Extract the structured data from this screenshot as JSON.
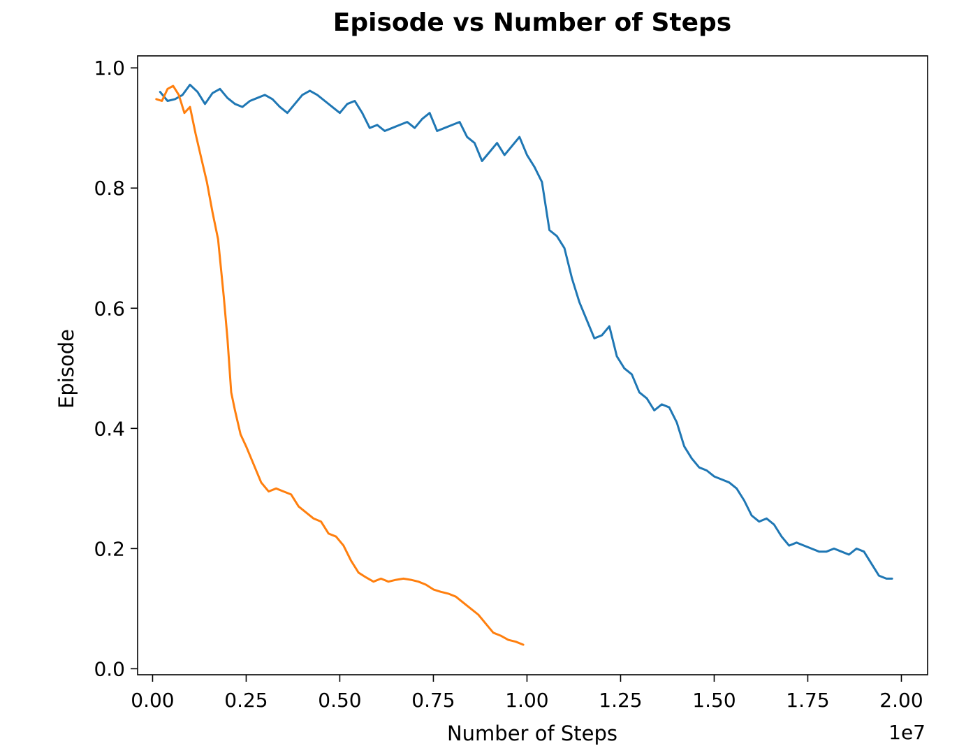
{
  "chart_data": {
    "type": "line",
    "title": "Episode vs Number of Steps",
    "xlabel": "Number of Steps",
    "ylabel": "Episode",
    "x_offset_label": "1e7",
    "xlim": [
      -0.04,
      2.07
    ],
    "ylim": [
      -0.01,
      1.02
    ],
    "x_ticks": [
      0.0,
      0.25,
      0.5,
      0.75,
      1.0,
      1.25,
      1.5,
      1.75,
      2.0
    ],
    "x_tick_labels": [
      "0.00",
      "0.25",
      "0.50",
      "0.75",
      "1.00",
      "1.25",
      "1.50",
      "1.75",
      "2.00"
    ],
    "y_ticks": [
      0.0,
      0.2,
      0.4,
      0.6,
      0.8,
      1.0
    ],
    "y_tick_labels": [
      "0.0",
      "0.2",
      "0.4",
      "0.6",
      "0.8",
      "1.0"
    ],
    "grid": false,
    "legend": "none",
    "series": [
      {
        "color": "#1f77b4",
        "x": [
          0.02,
          0.04,
          0.06,
          0.08,
          0.1,
          0.12,
          0.14,
          0.16,
          0.18,
          0.2,
          0.22,
          0.24,
          0.26,
          0.28,
          0.3,
          0.32,
          0.34,
          0.36,
          0.38,
          0.4,
          0.42,
          0.44,
          0.46,
          0.48,
          0.5,
          0.52,
          0.54,
          0.56,
          0.58,
          0.6,
          0.62,
          0.64,
          0.66,
          0.68,
          0.7,
          0.72,
          0.74,
          0.76,
          0.78,
          0.8,
          0.82,
          0.84,
          0.86,
          0.88,
          0.9,
          0.92,
          0.94,
          0.96,
          0.98,
          1.0,
          1.02,
          1.04,
          1.06,
          1.08,
          1.1,
          1.12,
          1.14,
          1.16,
          1.18,
          1.2,
          1.22,
          1.24,
          1.26,
          1.28,
          1.3,
          1.32,
          1.34,
          1.36,
          1.38,
          1.4,
          1.42,
          1.44,
          1.46,
          1.48,
          1.5,
          1.52,
          1.54,
          1.56,
          1.58,
          1.6,
          1.62,
          1.64,
          1.66,
          1.68,
          1.7,
          1.72,
          1.74,
          1.76,
          1.78,
          1.8,
          1.82,
          1.84,
          1.86,
          1.88,
          1.9,
          1.92,
          1.94,
          1.96,
          1.975
        ],
        "y": [
          0.96,
          0.945,
          0.948,
          0.955,
          0.972,
          0.96,
          0.94,
          0.958,
          0.965,
          0.95,
          0.94,
          0.935,
          0.945,
          0.95,
          0.955,
          0.948,
          0.935,
          0.925,
          0.94,
          0.955,
          0.962,
          0.955,
          0.945,
          0.935,
          0.925,
          0.94,
          0.945,
          0.925,
          0.9,
          0.905,
          0.895,
          0.9,
          0.905,
          0.91,
          0.9,
          0.915,
          0.925,
          0.895,
          0.9,
          0.905,
          0.91,
          0.885,
          0.875,
          0.845,
          0.86,
          0.875,
          0.855,
          0.87,
          0.885,
          0.855,
          0.835,
          0.81,
          0.73,
          0.72,
          0.7,
          0.65,
          0.61,
          0.58,
          0.55,
          0.555,
          0.57,
          0.52,
          0.5,
          0.49,
          0.46,
          0.45,
          0.43,
          0.44,
          0.435,
          0.41,
          0.37,
          0.35,
          0.335,
          0.33,
          0.32,
          0.315,
          0.31,
          0.3,
          0.28,
          0.255,
          0.245,
          0.25,
          0.24,
          0.22,
          0.205,
          0.21,
          0.205,
          0.2,
          0.195,
          0.195,
          0.2,
          0.195,
          0.19,
          0.2,
          0.195,
          0.175,
          0.155,
          0.15,
          0.15
        ]
      },
      {
        "color": "#ff7f0e",
        "x": [
          0.01,
          0.025,
          0.04,
          0.055,
          0.07,
          0.085,
          0.1,
          0.115,
          0.13,
          0.145,
          0.16,
          0.175,
          0.19,
          0.2,
          0.21,
          0.22,
          0.235,
          0.25,
          0.27,
          0.29,
          0.31,
          0.33,
          0.35,
          0.37,
          0.39,
          0.41,
          0.43,
          0.45,
          0.47,
          0.49,
          0.51,
          0.53,
          0.55,
          0.57,
          0.59,
          0.61,
          0.63,
          0.65,
          0.67,
          0.69,
          0.71,
          0.73,
          0.75,
          0.77,
          0.79,
          0.81,
          0.83,
          0.85,
          0.87,
          0.89,
          0.91,
          0.93,
          0.95,
          0.97,
          0.99
        ],
        "y": [
          0.948,
          0.945,
          0.965,
          0.97,
          0.955,
          0.925,
          0.935,
          0.89,
          0.85,
          0.81,
          0.76,
          0.715,
          0.62,
          0.55,
          0.46,
          0.43,
          0.39,
          0.37,
          0.34,
          0.31,
          0.295,
          0.3,
          0.295,
          0.29,
          0.27,
          0.26,
          0.25,
          0.245,
          0.225,
          0.22,
          0.205,
          0.18,
          0.16,
          0.152,
          0.145,
          0.15,
          0.145,
          0.148,
          0.15,
          0.148,
          0.145,
          0.14,
          0.132,
          0.128,
          0.125,
          0.12,
          0.11,
          0.1,
          0.09,
          0.075,
          0.06,
          0.055,
          0.048,
          0.045,
          0.04
        ]
      }
    ]
  }
}
